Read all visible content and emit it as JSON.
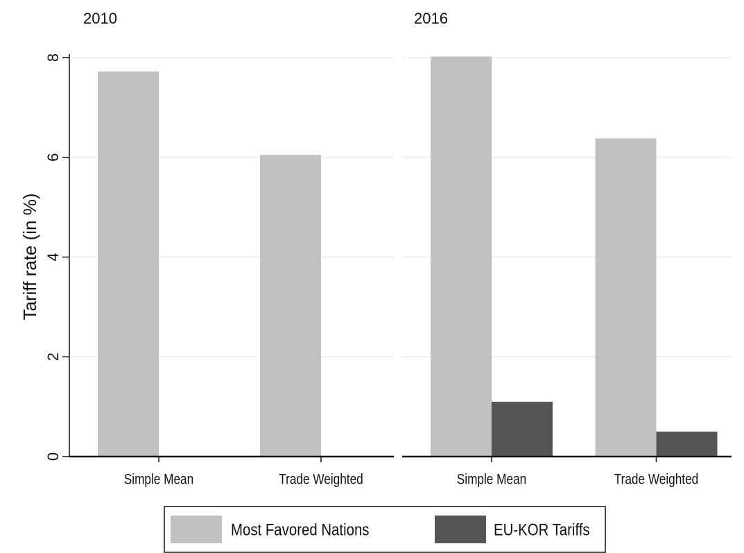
{
  "y_label": "Tariff rate (in %)",
  "chart_data": [
    {
      "type": "bar",
      "title": "2010",
      "categories": [
        "Simple Mean",
        "Trade Weighted"
      ],
      "series": [
        {
          "name": "Most Favored Nations",
          "color": "#c0c0c0",
          "values": [
            7.72,
            6.05
          ]
        },
        {
          "name": "EU-KOR Tariffs",
          "color": "#555555",
          "values": [
            null,
            null
          ]
        }
      ],
      "ylim": [
        0,
        8
      ],
      "yticks": [
        0,
        2,
        4,
        6,
        8
      ],
      "grid": true
    },
    {
      "type": "bar",
      "title": "2016",
      "categories": [
        "Simple Mean",
        "Trade Weighted"
      ],
      "series": [
        {
          "name": "Most Favored Nations",
          "color": "#c0c0c0",
          "values": [
            8.02,
            6.38
          ]
        },
        {
          "name": "EU-KOR Tariffs",
          "color": "#555555",
          "values": [
            1.1,
            0.5
          ]
        }
      ],
      "ylim": [
        0,
        8
      ],
      "yticks": [
        0,
        2,
        4,
        6,
        8
      ],
      "grid": true
    }
  ]
}
